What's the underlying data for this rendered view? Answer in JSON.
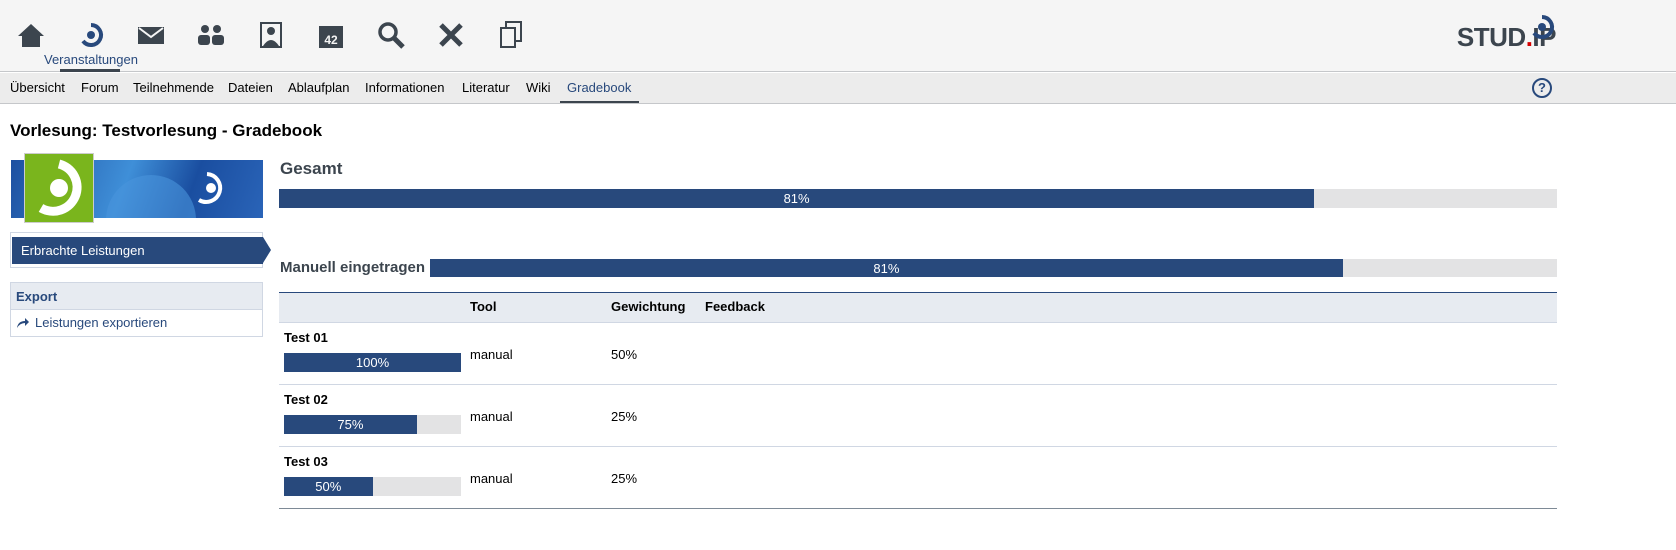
{
  "header": {
    "nav_icons": [
      "home-icon",
      "courses-icon",
      "mail-icon",
      "community-icon",
      "profile-icon",
      "calendar-icon",
      "search-icon",
      "tools-icon",
      "admin-icon"
    ],
    "active_nav_label": "Veranstaltungen",
    "calendar_day": "42",
    "logo": "STUD.IP"
  },
  "tabs": [
    "Übersicht",
    "Forum",
    "Teilnehmende",
    "Dateien",
    "Ablaufplan",
    "Informationen",
    "Literatur",
    "Wiki",
    "Gradebook"
  ],
  "active_tab": "Gradebook",
  "help_label": "?",
  "page_title": "Vorlesung: Testvorlesung - Gradebook",
  "sidebar": {
    "nav_item": "Erbrachte Leistungen",
    "export_title": "Export",
    "export_link": "Leistungen exportieren"
  },
  "colors": {
    "accent": "#28497c",
    "bar_bg": "#e3e3e4",
    "avatar_green": "#7ab51d"
  },
  "total": {
    "heading": "Gesamt",
    "percent": 81,
    "label": "81%"
  },
  "manual": {
    "heading": "Manuell eingetragen",
    "percent": 81,
    "label": "81%"
  },
  "table": {
    "columns": [
      "Tool",
      "Gewichtung",
      "Feedback"
    ],
    "rows": [
      {
        "name": "Test 01",
        "percent": 100,
        "label": "100%",
        "tool": "manual",
        "weight": "50%"
      },
      {
        "name": "Test 02",
        "percent": 75,
        "label": "75%",
        "tool": "manual",
        "weight": "25%"
      },
      {
        "name": "Test 03",
        "percent": 50,
        "label": "50%",
        "tool": "manual",
        "weight": "25%"
      }
    ]
  }
}
